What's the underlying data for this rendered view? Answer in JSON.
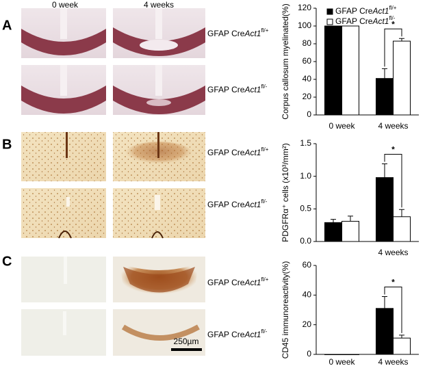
{
  "panels": [
    "A",
    "B",
    "C"
  ],
  "image_columns": [
    "0 week",
    "4 weeks"
  ],
  "genotypes": [
    {
      "prefix": "GFAP Cre",
      "gene": "Act1",
      "allele": "fl/+"
    },
    {
      "prefix": "GFAP Cre",
      "gene": "Act1",
      "allele": "fl/-"
    }
  ],
  "scale_bar": "250µm",
  "chart_data": [
    {
      "type": "bar",
      "ylabel": "Corpus callosum myelinated(%)",
      "categories": [
        "0 week",
        "4 weeks"
      ],
      "series": [
        {
          "name": {
            "prefix": "GFAP Cre",
            "gene": "Act1",
            "allele": "fl/+"
          },
          "color": "#000000",
          "values": [
            100,
            41
          ],
          "errors": [
            0,
            11
          ]
        },
        {
          "name": {
            "prefix": "GFAP Cre",
            "gene": "Act1",
            "allele": "fl/-"
          },
          "color": "#ffffff",
          "values": [
            100,
            83
          ],
          "errors": [
            0,
            3
          ]
        }
      ],
      "ylim": [
        0,
        120
      ],
      "yticks": [
        0,
        20,
        40,
        60,
        80,
        100,
        120
      ],
      "legend": "top",
      "annotation": "*"
    },
    {
      "type": "bar",
      "ylabel": "PDGFRα⁺ cells (x10³/mm²)",
      "categories": [
        null,
        "4 weeks"
      ],
      "series": [
        {
          "color": "#000000",
          "values": [
            0.29,
            0.98
          ],
          "errors": [
            0.05,
            0.21
          ]
        },
        {
          "color": "#ffffff",
          "values": [
            0.31,
            0.38
          ],
          "errors": [
            0.08,
            0.11
          ]
        }
      ],
      "ylim": [
        0,
        1.5
      ],
      "yticks": [
        {
          "value": 0,
          "label": "0.0"
        },
        {
          "value": 0.5,
          "label": "0.5"
        },
        {
          "value": 1,
          "label": "1.0"
        },
        {
          "value": 1.5,
          "label": "1.5"
        }
      ],
      "annotation": "*"
    },
    {
      "type": "bar",
      "ylabel": "CD45 immunoreactivity(%)",
      "categories": [
        "0 week",
        "4 weeks"
      ],
      "series": [
        {
          "color": "#000000",
          "values": [
            0,
            31
          ],
          "errors": [
            0,
            8
          ]
        },
        {
          "color": "#ffffff",
          "values": [
            0,
            11
          ],
          "errors": [
            0,
            2
          ]
        }
      ],
      "ylim": [
        0,
        60
      ],
      "yticks": [
        0,
        20,
        40,
        60
      ],
      "annotation": "*"
    }
  ]
}
